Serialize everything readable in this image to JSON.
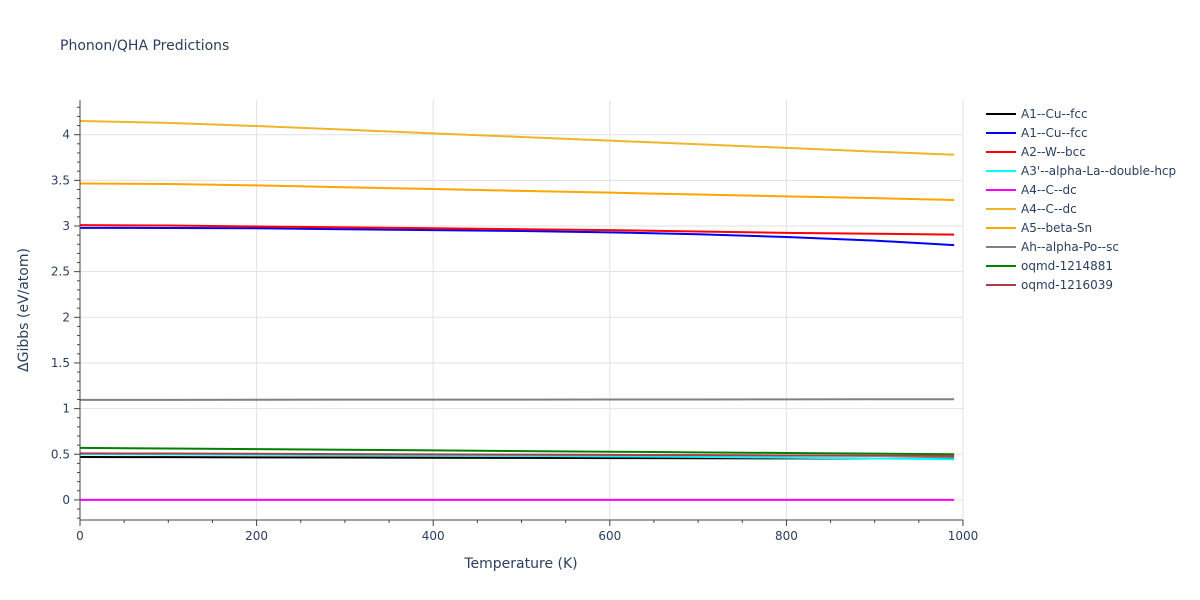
{
  "chart_data": {
    "type": "line",
    "title": "Phonon/QHA Predictions",
    "xlabel": "Temperature (K)",
    "ylabel": "ΔGibbs (eV/atom)",
    "xlim": [
      0,
      1000
    ],
    "ylim": [
      -0.22,
      4.38
    ],
    "xticks": [
      0,
      200,
      400,
      600,
      800,
      1000
    ],
    "xtick_labels": [
      "0",
      "200",
      "400",
      "600",
      "800",
      "1000"
    ],
    "yticks": [
      0,
      0.5,
      1,
      1.5,
      2,
      2.5,
      3,
      3.5,
      4
    ],
    "ytick_labels": [
      "0",
      "0.5",
      "1",
      "1.5",
      "2",
      "2.5",
      "3",
      "3.5",
      "4"
    ],
    "grid": true,
    "legend_position": "right",
    "x": [
      0,
      100,
      200,
      300,
      400,
      500,
      600,
      700,
      800,
      900,
      990
    ],
    "series": [
      {
        "name": "A1--Cu--fcc",
        "color": "#000000",
        "values": [
          0.47,
          0.468,
          0.466,
          0.464,
          0.462,
          0.46,
          0.458,
          0.456,
          0.455,
          0.454,
          0.453
        ]
      },
      {
        "name": "A1--Cu--fcc",
        "color": "#0000ff",
        "values": [
          2.98,
          2.978,
          2.975,
          2.965,
          2.955,
          2.945,
          2.93,
          2.91,
          2.88,
          2.84,
          2.79
        ]
      },
      {
        "name": "A2--W--bcc",
        "color": "#ff0000",
        "values": [
          3.01,
          3.005,
          2.995,
          2.985,
          2.975,
          2.965,
          2.955,
          2.94,
          2.925,
          2.915,
          2.905
        ]
      },
      {
        "name": "A3'--alpha-La--double-hcp",
        "color": "#00ffff",
        "values": [
          0.5,
          0.497,
          0.494,
          0.49,
          0.486,
          0.482,
          0.477,
          0.471,
          0.463,
          0.454,
          0.445
        ]
      },
      {
        "name": "A4--C--dc",
        "color": "#ff00ff",
        "values": [
          0,
          0,
          0,
          0,
          0,
          0,
          0,
          0,
          0,
          0,
          0
        ]
      },
      {
        "name": "A4--C--dc",
        "color": "#f0b429",
        "values": [
          4.15,
          4.13,
          4.095,
          4.055,
          4.015,
          3.975,
          3.935,
          3.895,
          3.855,
          3.815,
          3.78
        ]
      },
      {
        "name": "A5--beta-Sn",
        "color": "#ffa500",
        "values": [
          3.465,
          3.46,
          3.445,
          3.425,
          3.405,
          3.385,
          3.365,
          3.345,
          3.325,
          3.305,
          3.285
        ]
      },
      {
        "name": "Ah--alpha-Po--sc",
        "color": "#808080",
        "values": [
          1.095,
          1.096,
          1.097,
          1.098,
          1.098,
          1.099,
          1.1,
          1.1,
          1.101,
          1.102,
          1.102
        ]
      },
      {
        "name": "oqmd-1214881",
        "color": "#008000",
        "values": [
          0.57,
          0.563,
          0.556,
          0.549,
          0.542,
          0.535,
          0.528,
          0.521,
          0.514,
          0.507,
          0.5
        ]
      },
      {
        "name": "oqmd-1216039",
        "color": "#b03a48",
        "values": [
          0.51,
          0.508,
          0.505,
          0.502,
          0.499,
          0.496,
          0.493,
          0.49,
          0.487,
          0.484,
          0.481
        ]
      }
    ]
  }
}
